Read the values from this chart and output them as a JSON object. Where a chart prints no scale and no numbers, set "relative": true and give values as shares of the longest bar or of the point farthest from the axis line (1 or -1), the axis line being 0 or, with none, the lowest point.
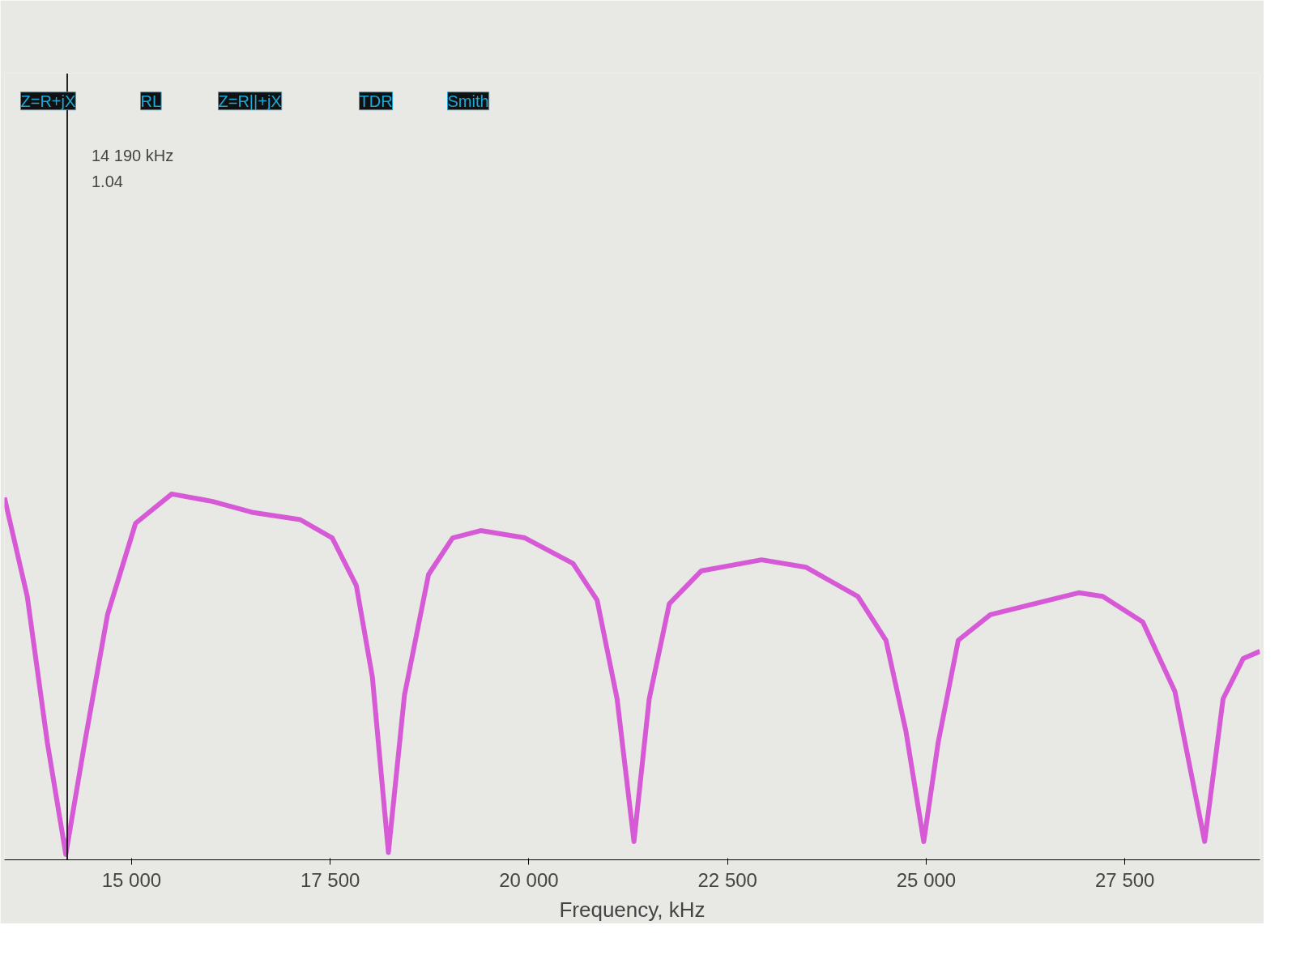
{
  "chart_data": {
    "type": "line",
    "xlabel": "Frequency, kHz",
    "relative": true,
    "x": [
      13400,
      13687,
      13940,
      14172,
      14394,
      14697,
      15050,
      15505,
      16010,
      16515,
      17121,
      17525,
      17828,
      18030,
      18232,
      18434,
      18737,
      19040,
      19394,
      19949,
      20555,
      20858,
      21110,
      21322,
      21514,
      21767,
      22171,
      22929,
      23484,
      24140,
      24494,
      24746,
      24969,
      25150,
      25403,
      25807,
      26918,
      27221,
      27726,
      28130,
      28504,
      28736,
      28989,
      29200
    ],
    "series": [
      {
        "color": "#d65ad6",
        "values": [
          0.99,
          0.72,
          0.32,
          0.015,
          0.3,
          0.67,
          0.92,
          1.0,
          0.98,
          0.95,
          0.93,
          0.88,
          0.75,
          0.5,
          0.02,
          0.45,
          0.78,
          0.88,
          0.9,
          0.88,
          0.81,
          0.71,
          0.44,
          0.05,
          0.44,
          0.7,
          0.79,
          0.82,
          0.8,
          0.72,
          0.6,
          0.35,
          0.05,
          0.32,
          0.6,
          0.67,
          0.73,
          0.72,
          0.65,
          0.46,
          0.05,
          0.44,
          0.55,
          0.57
        ]
      }
    ],
    "xlim": [
      13400,
      29200
    ],
    "xticks": [
      {
        "value": 15000,
        "label": "15 000"
      },
      {
        "value": 17500,
        "label": "17 500"
      },
      {
        "value": 20000,
        "label": "20 000"
      },
      {
        "value": 22500,
        "label": "22 500"
      },
      {
        "value": 25000,
        "label": "25 000"
      },
      {
        "value": 27500,
        "label": "27 500"
      }
    ],
    "ref_lines": [
      {
        "axis": "x",
        "value": 14190,
        "label": "14 190 kHz",
        "color": "#222222"
      }
    ],
    "annotations": [
      "Z=R+jX",
      "RL",
      "Z=R||+jX",
      "TDR",
      "Smith",
      "1.04"
    ],
    "line_style": "solid"
  }
}
